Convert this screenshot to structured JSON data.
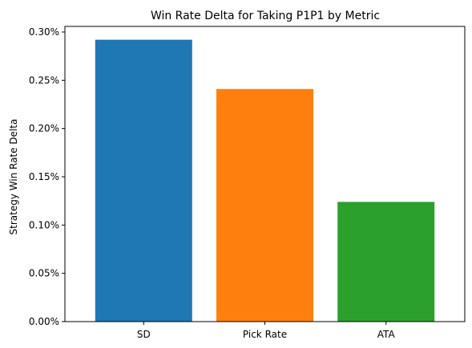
{
  "chart_data": {
    "type": "bar",
    "title": "Win Rate Delta for Taking P1P1 by Metric",
    "xlabel": "",
    "ylabel": "Strategy Win Rate Delta",
    "categories": [
      "SD",
      "Pick Rate",
      "ATA"
    ],
    "values": [
      0.292,
      0.241,
      0.124
    ],
    "colors": [
      "#1f77b4",
      "#ff7f0e",
      "#2ca02c"
    ],
    "ylim": [
      0,
      0.3
    ],
    "yticks": [
      0,
      0.05,
      0.1,
      0.15,
      0.2,
      0.25,
      0.3
    ],
    "ytick_labels": [
      "0.00%",
      "0.05%",
      "0.10%",
      "0.15%",
      "0.20%",
      "0.25%",
      "0.30%"
    ],
    "grid": false,
    "legend": "none"
  }
}
